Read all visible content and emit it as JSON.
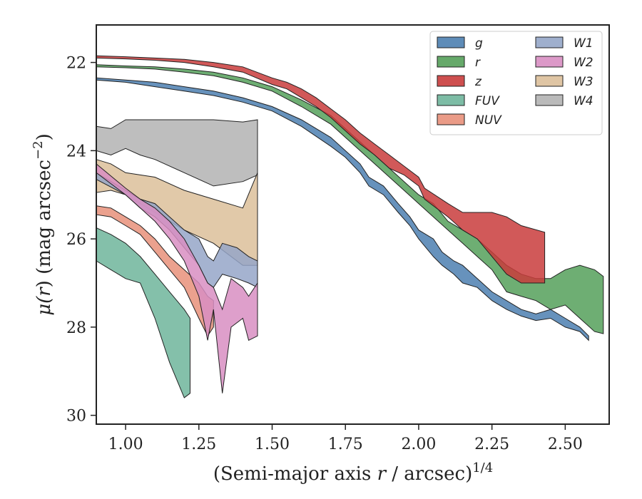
{
  "chart_data": {
    "type": "area",
    "xlabel": "(Semi-major axis",
    "xlabel_var": "r",
    "xlabel_unit": "/ arcsec)",
    "xlabel_exp": "1/4",
    "ylabel_pre": "μ(",
    "ylabel_var": "r",
    "ylabel_post": ") (mag arcsec",
    "ylabel_exp": "−2",
    "ylabel_end": ")",
    "xlim": [
      0.9,
      2.65
    ],
    "ylim": [
      30.2,
      21.15
    ],
    "y_inverted": true,
    "grid": false,
    "legend_placement": "top-right",
    "legend_columns": 2,
    "xticks": [
      "1.00",
      "1.25",
      "1.50",
      "1.75",
      "2.00",
      "2.25",
      "2.50"
    ],
    "yticks": [
      "22",
      "24",
      "26",
      "28",
      "30"
    ],
    "series": [
      {
        "name": "g",
        "color": "#4c7fb0",
        "x": [
          0.9,
          1.0,
          1.1,
          1.2,
          1.3,
          1.4,
          1.5,
          1.6,
          1.7,
          1.75,
          1.8,
          1.83,
          1.88,
          1.93,
          1.97,
          2.0,
          2.05,
          2.08,
          2.12,
          2.15,
          2.2,
          2.25,
          2.3,
          2.35,
          2.4,
          2.45,
          2.5,
          2.55,
          2.58
        ],
        "lo": [
          22.35,
          22.4,
          22.45,
          22.55,
          22.65,
          22.8,
          23.0,
          23.3,
          23.7,
          24.0,
          24.3,
          24.6,
          24.8,
          25.2,
          25.5,
          25.8,
          26.0,
          26.3,
          26.5,
          26.6,
          26.9,
          27.2,
          27.4,
          27.6,
          27.7,
          27.6,
          27.8,
          28.0,
          28.2
        ],
        "hi": [
          22.4,
          22.45,
          22.55,
          22.65,
          22.75,
          22.9,
          23.1,
          23.45,
          23.9,
          24.15,
          24.5,
          24.8,
          25.0,
          25.4,
          25.7,
          26.0,
          26.4,
          26.6,
          26.8,
          27.0,
          27.1,
          27.4,
          27.6,
          27.75,
          27.85,
          27.8,
          28.0,
          28.1,
          28.3
        ]
      },
      {
        "name": "r",
        "color": "#55a05a",
        "x": [
          0.9,
          1.0,
          1.1,
          1.2,
          1.3,
          1.4,
          1.5,
          1.6,
          1.7,
          1.75,
          1.8,
          1.85,
          1.9,
          1.95,
          2.0,
          2.05,
          2.1,
          2.15,
          2.2,
          2.25,
          2.3,
          2.35,
          2.4,
          2.45,
          2.5,
          2.55,
          2.6,
          2.63
        ],
        "lo": [
          22.05,
          22.08,
          22.1,
          22.15,
          22.22,
          22.35,
          22.55,
          22.85,
          23.2,
          23.5,
          23.8,
          24.1,
          24.4,
          24.7,
          25.0,
          25.2,
          25.6,
          25.8,
          26.0,
          26.3,
          26.6,
          26.8,
          26.9,
          26.9,
          26.7,
          26.6,
          26.7,
          26.85
        ],
        "hi": [
          22.1,
          22.12,
          22.15,
          22.22,
          22.3,
          22.45,
          22.65,
          23.0,
          23.4,
          23.7,
          24.0,
          24.3,
          24.6,
          24.9,
          25.2,
          25.5,
          25.8,
          26.1,
          26.4,
          26.7,
          27.2,
          27.3,
          27.4,
          27.6,
          27.5,
          27.8,
          28.1,
          28.15
        ]
      },
      {
        "name": "z",
        "color": "#c93c3c",
        "x": [
          0.9,
          1.0,
          1.1,
          1.2,
          1.3,
          1.4,
          1.5,
          1.55,
          1.6,
          1.65,
          1.7,
          1.75,
          1.8,
          1.85,
          1.9,
          1.95,
          2.0,
          2.02,
          2.1,
          2.15,
          2.2,
          2.25,
          2.3,
          2.35,
          2.43
        ],
        "lo": [
          21.85,
          21.87,
          21.9,
          21.93,
          22.0,
          22.1,
          22.35,
          22.45,
          22.6,
          22.8,
          23.05,
          23.3,
          23.6,
          23.85,
          24.1,
          24.35,
          24.6,
          24.85,
          25.2,
          25.4,
          25.4,
          25.4,
          25.5,
          25.7,
          25.85
        ],
        "hi": [
          21.9,
          21.92,
          21.95,
          22.0,
          22.1,
          22.22,
          22.5,
          22.6,
          22.8,
          23.0,
          23.25,
          23.55,
          23.85,
          24.1,
          24.4,
          24.55,
          24.8,
          25.1,
          25.5,
          25.8,
          26.0,
          26.4,
          26.8,
          27.0,
          27.0
        ]
      },
      {
        "name": "FUV",
        "color": "#6fb59b",
        "x": [
          0.9,
          0.95,
          1.0,
          1.05,
          1.1,
          1.15,
          1.2,
          1.22
        ],
        "lo": [
          25.75,
          25.9,
          26.1,
          26.4,
          26.8,
          27.2,
          27.6,
          27.8
        ],
        "hi": [
          26.5,
          26.7,
          26.9,
          27.0,
          27.8,
          28.8,
          29.6,
          29.5
        ]
      },
      {
        "name": "NUV",
        "color": "#e8907a",
        "x": [
          0.9,
          0.95,
          1.0,
          1.05,
          1.1,
          1.15,
          1.2,
          1.25,
          1.28,
          1.3
        ],
        "lo": [
          25.25,
          25.3,
          25.5,
          25.7,
          26.0,
          26.4,
          26.7,
          27.0,
          27.3,
          27.4
        ],
        "hi": [
          25.45,
          25.5,
          25.7,
          25.9,
          26.3,
          26.7,
          27.1,
          27.8,
          28.2,
          28.0
        ]
      },
      {
        "name": "W1",
        "color": "#95a6c8",
        "x": [
          0.9,
          1.0,
          1.05,
          1.1,
          1.15,
          1.2,
          1.25,
          1.28,
          1.3,
          1.33,
          1.38,
          1.42,
          1.45
        ],
        "lo": [
          24.5,
          24.9,
          25.1,
          25.2,
          25.5,
          25.8,
          26.0,
          26.4,
          26.5,
          26.1,
          26.2,
          26.4,
          26.5
        ],
        "hi": [
          24.65,
          25.0,
          25.3,
          25.5,
          25.8,
          26.2,
          26.6,
          27.0,
          27.1,
          26.8,
          26.9,
          27.0,
          27.1
        ]
      },
      {
        "name": "W2",
        "color": "#d88ec2",
        "x": [
          0.9,
          1.0,
          1.05,
          1.1,
          1.15,
          1.2,
          1.25,
          1.28,
          1.3,
          1.33,
          1.36,
          1.4,
          1.42,
          1.45
        ],
        "lo": [
          24.3,
          24.85,
          25.1,
          25.3,
          25.6,
          26.0,
          26.6,
          27.0,
          27.1,
          27.6,
          26.9,
          27.1,
          27.3,
          27.0
        ],
        "hi": [
          24.5,
          25.0,
          25.3,
          25.6,
          26.0,
          26.5,
          27.3,
          28.3,
          27.6,
          29.5,
          28.0,
          27.8,
          28.3,
          28.2
        ]
      },
      {
        "name": "W3",
        "color": "#dcbf9a",
        "x": [
          0.9,
          0.95,
          1.0,
          1.05,
          1.1,
          1.2,
          1.3,
          1.4,
          1.45
        ],
        "lo": [
          24.2,
          24.3,
          24.5,
          24.55,
          24.6,
          24.9,
          25.1,
          25.3,
          24.5
        ],
        "hi": [
          24.95,
          24.9,
          25.0,
          25.2,
          25.4,
          25.8,
          26.1,
          26.6,
          26.6
        ]
      },
      {
        "name": "W4",
        "color": "#b3b3b3",
        "x": [
          0.9,
          0.95,
          1.0,
          1.05,
          1.1,
          1.2,
          1.3,
          1.4,
          1.45
        ],
        "lo": [
          23.45,
          23.5,
          23.3,
          23.3,
          23.3,
          23.3,
          23.3,
          23.35,
          23.3
        ],
        "hi": [
          24.0,
          24.1,
          23.95,
          24.1,
          24.2,
          24.5,
          24.8,
          24.7,
          24.55
        ]
      }
    ]
  },
  "legend_order": [
    "g",
    "r",
    "z",
    "FUV",
    "NUV",
    "W1",
    "W2",
    "W3",
    "W4"
  ],
  "legend_labels": {
    "g": "g",
    "r": "r",
    "z": "z",
    "FUV": "FUV",
    "NUV": "NUV",
    "W1": "W1",
    "W2": "W2",
    "W3": "W3",
    "W4": "W4"
  }
}
